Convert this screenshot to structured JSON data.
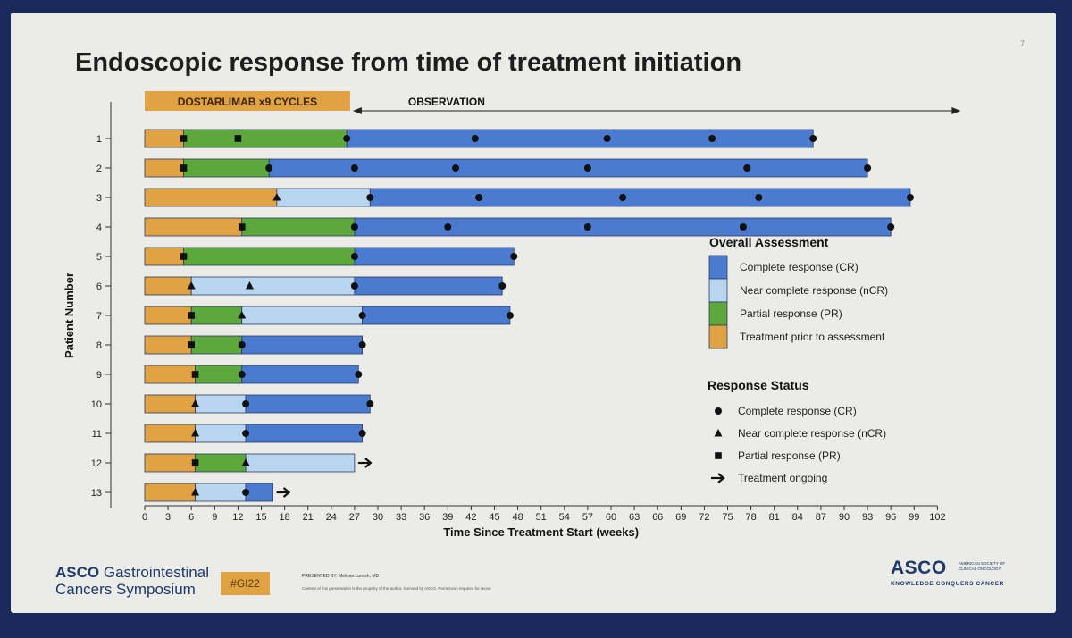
{
  "slide": {
    "page_number": "7",
    "title": "Endoscopic response from time of treatment initiation"
  },
  "footer": {
    "symposium_line1_bold": "ASCO",
    "symposium_line1_rest": "Gastrointestinal",
    "symposium_line2": "Cancers Symposium",
    "hashtag": "#GI22",
    "presenter": "PRESENTED BY: Melissa Lumish, MD",
    "copyright": "Content of this presentation is the property of the author, licensed by ASCO. Permission required for reuse.",
    "logo_text": "ASCO",
    "logo_org": "AMERICAN SOCIETY OF CLINICAL ONCOLOGY",
    "logo_tagline": "KNOWLEDGE CONQUERS CANCER"
  },
  "chart_data": {
    "type": "swimmer",
    "xlabel": "Time Since Treatment Start (weeks)",
    "ylabel": "Patient Number",
    "xlim": [
      0,
      102
    ],
    "xticks": [
      0,
      3,
      6,
      9,
      12,
      15,
      18,
      21,
      24,
      27,
      30,
      33,
      36,
      39,
      42,
      45,
      48,
      51,
      54,
      57,
      60,
      63,
      66,
      69,
      72,
      75,
      78,
      81,
      84,
      87,
      90,
      93,
      96,
      99,
      102
    ],
    "phases": [
      {
        "label": "DOSTARLIMAB x9 CYCLES",
        "start": 0,
        "end": 27,
        "color": "#e0a243"
      },
      {
        "label": "OBSERVATION",
        "start": 27,
        "end": 102
      }
    ],
    "colors": {
      "CR": "#4a7bd0",
      "nCR": "#b8d6ef",
      "PR": "#5da83c",
      "pre": "#e0a243"
    },
    "patients": [
      {
        "id": "1",
        "segments": [
          [
            "pre",
            0,
            5
          ],
          [
            "PR",
            5,
            26
          ],
          [
            "CR",
            26,
            86
          ]
        ],
        "markers": [
          [
            "PR",
            5
          ],
          [
            "PR",
            12
          ],
          [
            "CR",
            26
          ],
          [
            "CR",
            42.5
          ],
          [
            "CR",
            59.5
          ],
          [
            "CR",
            73
          ],
          [
            "CR",
            86
          ]
        ],
        "ongoing": false
      },
      {
        "id": "2",
        "segments": [
          [
            "pre",
            0,
            5
          ],
          [
            "PR",
            5,
            16
          ],
          [
            "CR",
            16,
            93
          ]
        ],
        "markers": [
          [
            "PR",
            5
          ],
          [
            "CR",
            16
          ],
          [
            "CR",
            27
          ],
          [
            "CR",
            40
          ],
          [
            "CR",
            57
          ],
          [
            "CR",
            77.5
          ],
          [
            "CR",
            93
          ]
        ],
        "ongoing": false
      },
      {
        "id": "3",
        "segments": [
          [
            "pre",
            0,
            17
          ],
          [
            "nCR",
            17,
            29
          ],
          [
            "CR",
            29,
            98.5
          ]
        ],
        "markers": [
          [
            "nCR",
            17
          ],
          [
            "CR",
            29
          ],
          [
            "CR",
            43
          ],
          [
            "CR",
            61.5
          ],
          [
            "CR",
            79
          ],
          [
            "CR",
            98.5
          ]
        ],
        "ongoing": false
      },
      {
        "id": "4",
        "segments": [
          [
            "pre",
            0,
            12.5
          ],
          [
            "PR",
            12.5,
            27
          ],
          [
            "CR",
            27,
            96
          ]
        ],
        "markers": [
          [
            "PR",
            12.5
          ],
          [
            "CR",
            27
          ],
          [
            "CR",
            39
          ],
          [
            "CR",
            57
          ],
          [
            "CR",
            77
          ],
          [
            "CR",
            96
          ]
        ],
        "ongoing": false
      },
      {
        "id": "5",
        "segments": [
          [
            "pre",
            0,
            5
          ],
          [
            "PR",
            5,
            27
          ],
          [
            "CR",
            27,
            47.5
          ]
        ],
        "markers": [
          [
            "PR",
            5
          ],
          [
            "CR",
            27
          ],
          [
            "CR",
            47.5
          ]
        ],
        "ongoing": false
      },
      {
        "id": "6",
        "segments": [
          [
            "pre",
            0,
            6
          ],
          [
            "nCR",
            6,
            27
          ],
          [
            "CR",
            27,
            46
          ]
        ],
        "markers": [
          [
            "nCR",
            6
          ],
          [
            "nCR",
            13.5
          ],
          [
            "CR",
            27
          ],
          [
            "CR",
            46
          ]
        ],
        "ongoing": false
      },
      {
        "id": "7",
        "segments": [
          [
            "pre",
            0,
            6
          ],
          [
            "PR",
            6,
            12.5
          ],
          [
            "nCR",
            12.5,
            28
          ],
          [
            "CR",
            28,
            47
          ]
        ],
        "markers": [
          [
            "PR",
            6
          ],
          [
            "nCR",
            12.5
          ],
          [
            "CR",
            28
          ],
          [
            "CR",
            47
          ]
        ],
        "ongoing": false
      },
      {
        "id": "8",
        "segments": [
          [
            "pre",
            0,
            6
          ],
          [
            "PR",
            6,
            12.5
          ],
          [
            "CR",
            12.5,
            28
          ]
        ],
        "markers": [
          [
            "PR",
            6
          ],
          [
            "CR",
            12.5
          ],
          [
            "CR",
            28
          ]
        ],
        "ongoing": false
      },
      {
        "id": "9",
        "segments": [
          [
            "pre",
            0,
            6.5
          ],
          [
            "PR",
            6.5,
            12.5
          ],
          [
            "CR",
            12.5,
            27.5
          ]
        ],
        "markers": [
          [
            "PR",
            6.5
          ],
          [
            "CR",
            12.5
          ],
          [
            "CR",
            27.5
          ]
        ],
        "ongoing": false
      },
      {
        "id": "10",
        "segments": [
          [
            "pre",
            0,
            6.5
          ],
          [
            "nCR",
            6.5,
            13
          ],
          [
            "CR",
            13,
            29
          ]
        ],
        "markers": [
          [
            "nCR",
            6.5
          ],
          [
            "CR",
            13
          ],
          [
            "CR",
            29
          ]
        ],
        "ongoing": false
      },
      {
        "id": "11",
        "segments": [
          [
            "pre",
            0,
            6.5
          ],
          [
            "nCR",
            6.5,
            13
          ],
          [
            "CR",
            13,
            28
          ]
        ],
        "markers": [
          [
            "nCR",
            6.5
          ],
          [
            "CR",
            13
          ],
          [
            "CR",
            28
          ]
        ],
        "ongoing": false
      },
      {
        "id": "12",
        "segments": [
          [
            "pre",
            0,
            6.5
          ],
          [
            "PR",
            6.5,
            13
          ],
          [
            "nCR",
            13,
            27
          ]
        ],
        "markers": [
          [
            "PR",
            6.5
          ],
          [
            "nCR",
            13
          ]
        ],
        "ongoing": true
      },
      {
        "id": "13",
        "segments": [
          [
            "pre",
            0,
            6.5
          ],
          [
            "nCR",
            6.5,
            13
          ],
          [
            "CR",
            13,
            16.5
          ]
        ],
        "markers": [
          [
            "nCR",
            6.5
          ],
          [
            "CR",
            13
          ]
        ],
        "ongoing": true
      }
    ],
    "legend_overall": {
      "title": "Overall Assessment",
      "items": [
        {
          "key": "CR",
          "label": "Complete response (CR)"
        },
        {
          "key": "nCR",
          "label": "Near complete response (nCR)"
        },
        {
          "key": "PR",
          "label": "Partial response (PR)"
        },
        {
          "key": "pre",
          "label": "Treatment prior to assessment"
        }
      ]
    },
    "legend_status": {
      "title": "Response Status",
      "items": [
        {
          "symbol": "circle",
          "label": "Complete response (CR)"
        },
        {
          "symbol": "triangle",
          "label": "Near complete response (nCR)"
        },
        {
          "symbol": "square",
          "label": "Partial response (PR)"
        },
        {
          "symbol": "arrow",
          "label": "Treatment ongoing"
        }
      ]
    }
  }
}
